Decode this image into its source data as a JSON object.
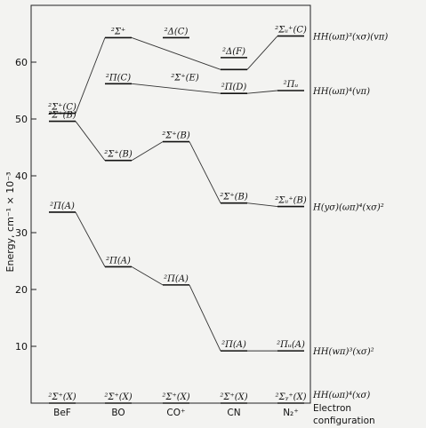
{
  "chart_data": {
    "type": "energy-level-diagram",
    "ylabel": "Energy, cm⁻¹ × 10⁻³",
    "ylim": [
      0,
      70
    ],
    "yticks": [
      10,
      20,
      30,
      40,
      50,
      60
    ],
    "molecules": [
      "BeF",
      "BO",
      "CO⁺",
      "CN",
      "N₂⁺"
    ],
    "footer_label": [
      "Electron",
      "configuration"
    ],
    "series": [
      {
        "key": "X",
        "levels": [
          {
            "molecule": "BeF",
            "energy": 0,
            "label": "²Σ⁺(X)"
          },
          {
            "molecule": "BO",
            "energy": 0,
            "label": "²Σ⁺(X)"
          },
          {
            "molecule": "CO⁺",
            "energy": 0,
            "label": "²Σ⁺(X)"
          },
          {
            "molecule": "CN",
            "energy": 0,
            "label": "²Σ⁺(X)"
          },
          {
            "molecule": "N₂⁺",
            "energy": 0,
            "label": "²Σᵧ⁺(X)"
          }
        ],
        "config": "HH(ωπ)⁴(xσ)"
      },
      {
        "key": "A",
        "levels": [
          {
            "molecule": "BeF",
            "energy": 33.6,
            "label": "²Π(A)"
          },
          {
            "molecule": "BO",
            "energy": 24.0,
            "label": "²Π(A)"
          },
          {
            "molecule": "CO⁺",
            "energy": 20.8,
            "label": "²Π(A)"
          },
          {
            "molecule": "CN",
            "energy": 9.2,
            "label": "²Π(A)"
          },
          {
            "molecule": "N₂⁺",
            "energy": 9.2,
            "label": "²Πᵤ(A)"
          }
        ],
        "config": "HH(wπ)³(xσ)²"
      },
      {
        "key": "B",
        "levels": [
          {
            "molecule": "BeF",
            "energy": 49.6,
            "label": "²Σ⁺(B)"
          },
          {
            "molecule": "BO",
            "energy": 42.7,
            "label": "²Σ⁺(B)"
          },
          {
            "molecule": "CO⁺",
            "energy": 46.0,
            "label": "²Σ⁺(B)"
          },
          {
            "molecule": "CN",
            "energy": 35.2,
            "label": "²Σ⁺(B)"
          },
          {
            "molecule": "N₂⁺",
            "energy": 34.6,
            "label": "²Σᵤ⁺(B)"
          }
        ],
        "config": "H(yσ)(ωπ)⁴(xσ)²"
      },
      {
        "key": "C",
        "levels": [
          {
            "molecule": "BeF",
            "energy": 51.0,
            "label": "²Σ⁺(C)"
          },
          {
            "molecule": "BO",
            "energy": 64.3,
            "label": "²Σ⁺"
          },
          {
            "molecule": "CN",
            "energy": 58.7,
            "label": ""
          },
          {
            "molecule": "N₂⁺",
            "energy": 64.6,
            "label": "²Σᵤ⁺(C)"
          }
        ],
        "config": "HH(ωπ)³(xσ)(vπ)"
      },
      {
        "key": "Pi",
        "levels": [
          {
            "molecule": "BO",
            "energy": 56.2,
            "label": "²Π(C)"
          },
          {
            "molecule": "CN",
            "energy": 54.5,
            "label": "²Π(D)"
          },
          {
            "molecule": "N₂⁺",
            "energy": 55.0,
            "label": "²Πᵤ"
          }
        ],
        "config": "HH(ωπ)⁴(vπ)"
      }
    ],
    "extra_levels": [
      {
        "molecule": "CO⁺",
        "energy": 64.3,
        "label": "²Δ(C)"
      },
      {
        "molecule": "CN",
        "energy": 60.8,
        "label": "²Δ(F)"
      }
    ],
    "floating_labels": [
      {
        "molecule": "CO⁺",
        "energy": 56.2,
        "label": "²Σ⁺(E)"
      }
    ]
  }
}
